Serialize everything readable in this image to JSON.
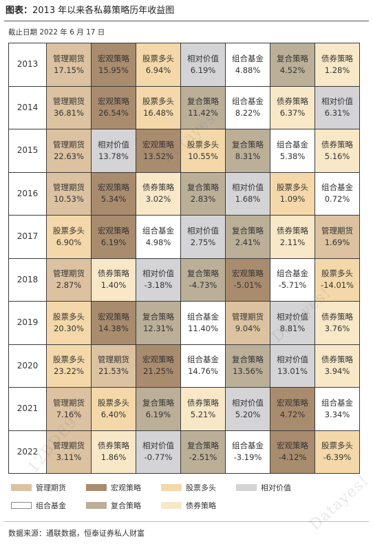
{
  "figure_label": "图表：",
  "chart_data": {
    "type": "table",
    "title": "2013 年以来各私募策略历年收益图",
    "subtitle": "截止日期 2022 年 6 月 17 日",
    "unit": "%",
    "grid": true,
    "legend_placement": "bottom",
    "legend": [
      {
        "label": "管理期货",
        "color": "#dcc2a0"
      },
      {
        "label": "宏观策略",
        "color": "#a98b6e"
      },
      {
        "label": "股票多头",
        "color": "#f4d8a9"
      },
      {
        "label": "相对价值",
        "color": "#d4d4d6"
      },
      {
        "label": "组合基金",
        "color": "#ffffff"
      },
      {
        "label": "复合策略",
        "color": "#bbaf98"
      },
      {
        "label": "债券策略",
        "color": "#f8e8c8"
      }
    ],
    "rows": [
      {
        "year": "2013",
        "cells": [
          {
            "strategy": "管理期货",
            "value": 17.15
          },
          {
            "strategy": "宏观策略",
            "value": 15.95
          },
          {
            "strategy": "股票多头",
            "value": 6.94
          },
          {
            "strategy": "相对价值",
            "value": 6.19
          },
          {
            "strategy": "组合基金",
            "value": 4.88
          },
          {
            "strategy": "复合策略",
            "value": 4.52
          },
          {
            "strategy": "债券策略",
            "value": 1.28
          }
        ]
      },
      {
        "year": "2014",
        "cells": [
          {
            "strategy": "管理期货",
            "value": 36.81
          },
          {
            "strategy": "宏观策略",
            "value": 26.54
          },
          {
            "strategy": "股票多头",
            "value": 16.48
          },
          {
            "strategy": "复合策略",
            "value": 11.42
          },
          {
            "strategy": "组合基金",
            "value": 8.22
          },
          {
            "strategy": "债券策略",
            "value": 6.37
          },
          {
            "strategy": "相对价值",
            "value": 6.31
          }
        ]
      },
      {
        "year": "2015",
        "cells": [
          {
            "strategy": "管理期货",
            "value": 22.63
          },
          {
            "strategy": "相对价值",
            "value": 13.78
          },
          {
            "strategy": "宏观策略",
            "value": 13.52
          },
          {
            "strategy": "股票多头",
            "value": 10.55
          },
          {
            "strategy": "复合策略",
            "value": 8.31
          },
          {
            "strategy": "组合基金",
            "value": 5.38
          },
          {
            "strategy": "债券策略",
            "value": 5.16
          }
        ]
      },
      {
        "year": "2016",
        "cells": [
          {
            "strategy": "管理期货",
            "value": 10.53
          },
          {
            "strategy": "宏观策略",
            "value": 5.34
          },
          {
            "strategy": "债券策略",
            "value": 3.02
          },
          {
            "strategy": "复合策略",
            "value": 2.83
          },
          {
            "strategy": "相对价值",
            "value": 1.68
          },
          {
            "strategy": "股票多头",
            "value": 1.09
          },
          {
            "strategy": "组合基金",
            "value": 0.72
          }
        ]
      },
      {
        "year": "2017",
        "cells": [
          {
            "strategy": "股票多头",
            "value": 6.9
          },
          {
            "strategy": "宏观策略",
            "value": 6.19
          },
          {
            "strategy": "组合基金",
            "value": 4.98
          },
          {
            "strategy": "相对价值",
            "value": 2.75
          },
          {
            "strategy": "复合策略",
            "value": 2.41
          },
          {
            "strategy": "债券策略",
            "value": 2.11
          },
          {
            "strategy": "管理期货",
            "value": 1.69
          }
        ]
      },
      {
        "year": "2018",
        "cells": [
          {
            "strategy": "管理期货",
            "value": 2.87
          },
          {
            "strategy": "债券策略",
            "value": 1.4
          },
          {
            "strategy": "相对价值",
            "value": -3.18
          },
          {
            "strategy": "复合策略",
            "value": -4.73
          },
          {
            "strategy": "宏观策略",
            "value": -5.01
          },
          {
            "strategy": "组合基金",
            "value": -5.71
          },
          {
            "strategy": "股票多头",
            "value": -14.01
          }
        ]
      },
      {
        "year": "2019",
        "cells": [
          {
            "strategy": "股票多头",
            "value": 20.3
          },
          {
            "strategy": "宏观策略",
            "value": 14.38
          },
          {
            "strategy": "复合策略",
            "value": 12.31
          },
          {
            "strategy": "组合基金",
            "value": 11.4
          },
          {
            "strategy": "管理期货",
            "value": 9.04
          },
          {
            "strategy": "相对价值",
            "value": 8.81
          },
          {
            "strategy": "债券策略",
            "value": 3.76
          }
        ]
      },
      {
        "year": "2020",
        "cells": [
          {
            "strategy": "股票多头",
            "value": 23.22
          },
          {
            "strategy": "管理期货",
            "value": 21.53
          },
          {
            "strategy": "宏观策略",
            "value": 21.25
          },
          {
            "strategy": "组合基金",
            "value": 14.76
          },
          {
            "strategy": "复合策略",
            "value": 13.56
          },
          {
            "strategy": "相对价值",
            "value": 13.01
          },
          {
            "strategy": "债券策略",
            "value": 3.94
          }
        ]
      },
      {
        "year": "2021",
        "cells": [
          {
            "strategy": "管理期货",
            "value": 7.16
          },
          {
            "strategy": "股票多头",
            "value": 6.4
          },
          {
            "strategy": "复合策略",
            "value": 6.19
          },
          {
            "strategy": "债券策略",
            "value": 5.21
          },
          {
            "strategy": "相对价值",
            "value": 5.2
          },
          {
            "strategy": "宏观策略",
            "value": 4.72
          },
          {
            "strategy": "组合基金",
            "value": 3.34
          }
        ]
      },
      {
        "year": "2022",
        "cells": [
          {
            "strategy": "管理期货",
            "value": 3.11
          },
          {
            "strategy": "债券策略",
            "value": 1.86
          },
          {
            "strategy": "相对价值",
            "value": -0.77
          },
          {
            "strategy": "复合策略",
            "value": -2.51
          },
          {
            "strategy": "组合基金",
            "value": -3.19
          },
          {
            "strategy": "宏观策略",
            "value": -4.12
          },
          {
            "strategy": "股票多头",
            "value": -6.39
          }
        ]
      }
    ]
  },
  "source": "数据来源：通联数据，恒泰证券私人财富",
  "watermark": {
    "brand": "Datayes!",
    "code": "12BDE97"
  }
}
